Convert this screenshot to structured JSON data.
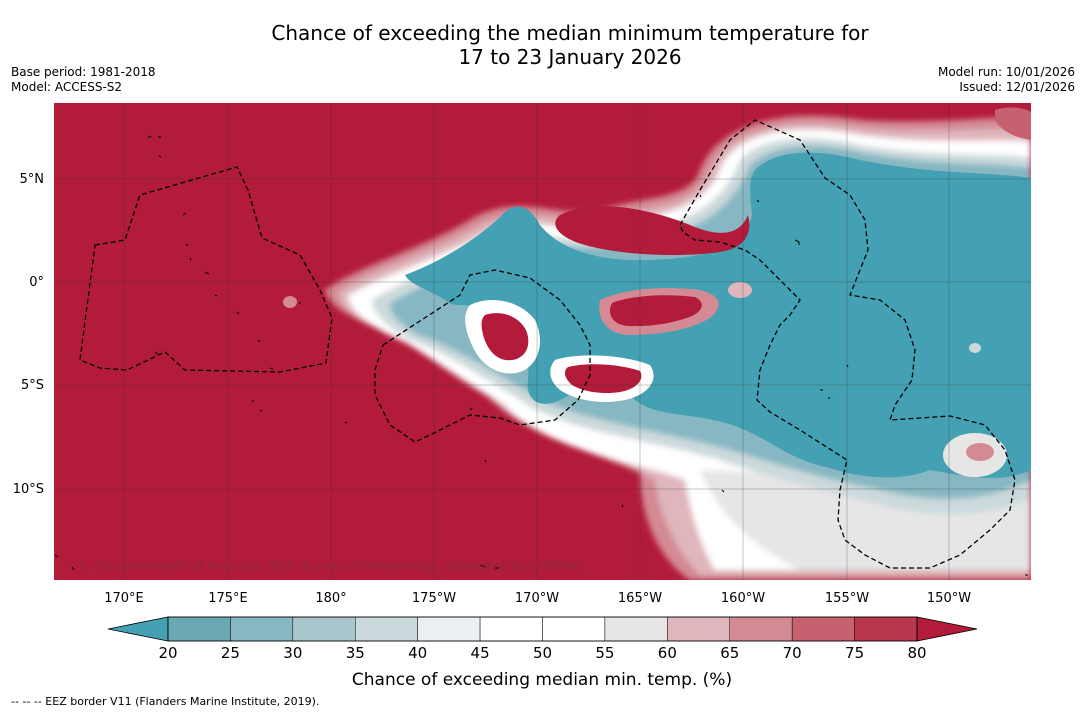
{
  "title": {
    "line1": "Chance of exceeding the median minimum temperature for",
    "line2": "17 to 23 January 2026"
  },
  "meta": {
    "base_period": "Base period: 1981-2018",
    "model": "Model: ACCESS-S2",
    "model_run": "Model run: 10/01/2026",
    "issued": "Issued: 12/01/2026"
  },
  "map": {
    "lat_labels": [
      "5°N",
      "0°",
      "5°S",
      "10°S"
    ],
    "lon_labels": [
      "170°E",
      "175°E",
      "180°",
      "175°W",
      "170°W",
      "165°W",
      "160°W",
      "155°W",
      "150°W"
    ],
    "copyright": "© Commonwealth of Australia 2026, Bureau of Meteorology, supported by COSPPac"
  },
  "colorbar": {
    "ticks": [
      "20",
      "25",
      "30",
      "35",
      "40",
      "45",
      "50",
      "55",
      "60",
      "65",
      "70",
      "75",
      "80"
    ],
    "colors": [
      "#6aa8b4",
      "#86b7c2",
      "#a9c6cc",
      "#ccd9dc",
      "#eaf0f2",
      "#ffffff",
      "#ffffff",
      "#e6e6e6",
      "#dfb6bc",
      "#d48a94",
      "#c7606f",
      "#b9384d"
    ],
    "under_color": "#44a0b3",
    "over_color": "#b31b3a",
    "label": "Chance of exceeding median min. temp. (%)"
  },
  "footer": {
    "legend": "--  --  -- EEZ border V11 (Flanders Marine Institute, 2019)."
  }
}
